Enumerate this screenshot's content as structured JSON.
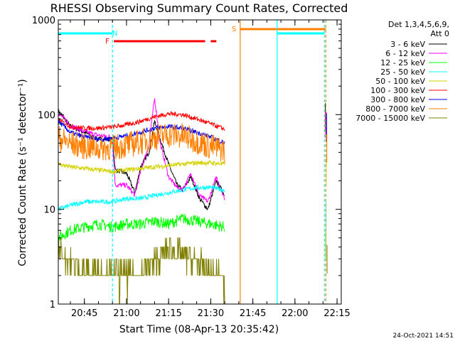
{
  "chart_data": {
    "type": "line",
    "title": "RHESSI Observing Summary Count Rates, Corrected",
    "xlabel": "Start Time (08-Apr-13 20:35:42)",
    "ylabel": "Corrected Count Rate (s⁻¹ detector⁻¹)",
    "xlim": [
      "20:35:42",
      "22:16:30"
    ],
    "ylim": [
      1,
      1000
    ],
    "yscale": "log",
    "x_ticks": [
      "20:45",
      "21:00",
      "21:15",
      "21:30",
      "21:45",
      "22:00",
      "22:15"
    ],
    "y_ticks": [
      "1",
      "10",
      "100",
      "1000"
    ],
    "legend_header": [
      "Det 1,3,4,5,6,9,",
      "Att 0"
    ],
    "legend_position": "right",
    "timestamp": "24-Oct-2021 14:51",
    "flags": [
      {
        "label": "N",
        "color": "#00ffff",
        "segments": [
          [
            "20:35:42",
            "20:55:00"
          ],
          [
            "21:53:40",
            "22:10:30"
          ]
        ]
      },
      {
        "label": "F",
        "color": "#ff0000",
        "segments": [
          [
            "20:55:30",
            "21:28:00"
          ],
          [
            "21:30:00",
            "21:32:00"
          ]
        ]
      },
      {
        "label": "S",
        "color": "#ff7f00",
        "segments": [
          [
            "21:40:30",
            "22:11:00"
          ]
        ]
      }
    ],
    "vertical_lines": [
      {
        "time": "20:55:00",
        "color": "#00ffff",
        "style": "dashed"
      },
      {
        "time": "21:40:30",
        "color": "#ff7f00",
        "style": "solid"
      },
      {
        "time": "21:53:40",
        "color": "#00ffff",
        "style": "solid"
      },
      {
        "time": "22:10:30",
        "color": "#00ffff",
        "style": "dashed"
      },
      {
        "time": "22:11:00",
        "color": "#ff7f00",
        "style": "dashed"
      }
    ],
    "series": [
      {
        "name": "3 - 6 keV",
        "color": "#000000",
        "x": [
          "20:35:42",
          "20:40",
          "20:45",
          "20:50",
          "20:55",
          "20:56",
          "21:00",
          "21:03",
          "21:05",
          "21:08",
          "21:10",
          "21:12",
          "21:15",
          "21:18",
          "21:20",
          "21:23",
          "21:26",
          "21:29",
          "21:32",
          "21:35"
        ],
        "values": [
          110,
          75,
          65,
          55,
          55,
          26,
          24,
          15,
          28,
          40,
          85,
          55,
          30,
          18,
          16,
          22,
          13,
          10,
          20,
          14
        ]
      },
      {
        "name": "6 - 12 keV",
        "color": "#ff00ff",
        "x": [
          "20:35:42",
          "20:40",
          "20:45",
          "20:50",
          "20:55",
          "20:56",
          "21:00",
          "21:03",
          "21:05",
          "21:08",
          "21:10",
          "21:12",
          "21:15",
          "21:18",
          "21:20",
          "21:23",
          "21:26",
          "21:29",
          "21:32",
          "21:35"
        ],
        "values": [
          95,
          70,
          60,
          55,
          52,
          18,
          18,
          14,
          25,
          48,
          150,
          50,
          22,
          17,
          16,
          24,
          14,
          12,
          22,
          13
        ]
      },
      {
        "name": "12 - 25 keV",
        "color": "#00ff00",
        "x": [
          "20:35:42",
          "20:40",
          "20:45",
          "20:50",
          "20:55",
          "21:00",
          "21:05",
          "21:10",
          "21:15",
          "21:20",
          "21:25",
          "21:30",
          "21:35"
        ],
        "values": [
          5,
          6,
          6.5,
          7,
          6.5,
          7,
          7,
          7.5,
          7,
          8,
          7.5,
          7,
          6.5
        ]
      },
      {
        "name": "25 - 50 keV",
        "color": "#00ffff",
        "x": [
          "20:35:42",
          "20:40",
          "20:45",
          "20:50",
          "20:55",
          "21:00",
          "21:05",
          "21:10",
          "21:15",
          "21:20",
          "21:25",
          "21:30",
          "21:35"
        ],
        "values": [
          10,
          11,
          12,
          12,
          12,
          13,
          13,
          14,
          15,
          16,
          17,
          17,
          16
        ]
      },
      {
        "name": "50 - 100 keV",
        "color": "#d2d200",
        "x": [
          "20:35:42",
          "20:40",
          "20:45",
          "20:50",
          "20:55",
          "21:00",
          "21:05",
          "21:10",
          "21:15",
          "21:20",
          "21:25",
          "21:30",
          "21:35"
        ],
        "values": [
          30,
          28,
          27,
          26,
          25,
          26,
          27,
          28,
          29,
          30,
          31,
          31,
          30
        ]
      },
      {
        "name": "100 - 300 keV",
        "color": "#ff0000",
        "x": [
          "20:35:42",
          "20:40",
          "20:45",
          "20:50",
          "20:55",
          "21:00",
          "21:05",
          "21:10",
          "21:15",
          "21:20",
          "21:25",
          "21:30",
          "21:35"
        ],
        "values": [
          88,
          75,
          72,
          72,
          74,
          78,
          85,
          95,
          102,
          100,
          90,
          80,
          70
        ]
      },
      {
        "name": "300 - 800 keV",
        "color": "#0000ff",
        "x": [
          "20:35:42",
          "20:40",
          "20:45",
          "20:50",
          "20:55",
          "21:00",
          "21:05",
          "21:10",
          "21:15",
          "21:20",
          "21:25",
          "21:30",
          "21:35"
        ],
        "values": [
          85,
          65,
          58,
          55,
          56,
          60,
          65,
          72,
          75,
          72,
          65,
          58,
          50
        ]
      },
      {
        "name": "800 - 7000 keV",
        "color": "#ff7f00",
        "x": [
          "20:35:42",
          "20:40",
          "20:45",
          "20:50",
          "20:55",
          "21:00",
          "21:05",
          "21:10",
          "21:15",
          "21:20",
          "21:25",
          "21:30",
          "21:35"
        ],
        "values": [
          52,
          45,
          42,
          40,
          41,
          43,
          47,
          52,
          56,
          54,
          48,
          42,
          38
        ]
      },
      {
        "name": "7000 - 15000 keV",
        "color": "#808000",
        "x": [
          "20:35:42",
          "20:40",
          "20:45",
          "20:50",
          "20:55",
          "21:00",
          "21:05",
          "21:10",
          "21:15",
          "21:20",
          "21:25",
          "21:30",
          "21:35"
        ],
        "values": [
          3.5,
          2.5,
          2,
          2,
          1.8,
          1.8,
          2,
          2.5,
          3.5,
          3,
          2.5,
          2,
          1.6
        ]
      }
    ]
  }
}
